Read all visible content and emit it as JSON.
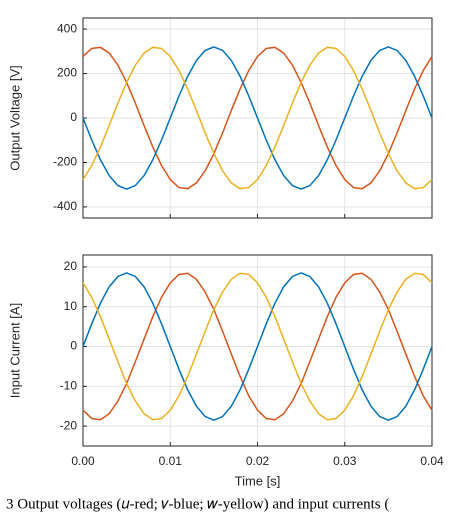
{
  "chart_data": [
    {
      "type": "line",
      "ylabel": "Output Voltage [V]",
      "x": [
        0,
        0.001,
        0.002,
        0.003,
        0.004,
        0.005,
        0.006,
        0.007,
        0.008,
        0.009,
        0.01,
        0.011,
        0.012,
        0.013,
        0.014,
        0.015,
        0.016,
        0.017,
        0.018,
        0.019,
        0.02,
        0.021,
        0.022,
        0.023,
        0.024,
        0.025,
        0.026,
        0.027,
        0.028,
        0.029,
        0.03,
        0.031,
        0.032,
        0.033,
        0.034,
        0.035,
        0.036,
        0.037,
        0.038,
        0.039,
        0.04
      ],
      "xlim": [
        0,
        0.04
      ],
      "ylim": [
        -450,
        450
      ],
      "yticks": [
        -400,
        -200,
        0,
        200,
        400
      ],
      "grid": true,
      "series": [
        {
          "color": "#D95319",
          "values": [
            277,
            313,
            318,
            292,
            238,
            160,
            67,
            -34,
            -130,
            -214,
            -277,
            -313,
            -318,
            -292,
            -238,
            -160,
            -67,
            34,
            130,
            214,
            277,
            313,
            318,
            292,
            238,
            160,
            67,
            -34,
            -130,
            -214,
            -277,
            -313,
            -318,
            -292,
            -238,
            -160,
            -67,
            34,
            130,
            214,
            277
          ]
        },
        {
          "color": "#0072BD",
          "values": [
            0,
            -99,
            -188,
            -259,
            -304,
            -320,
            -304,
            -259,
            -188,
            -99,
            0,
            99,
            188,
            259,
            304,
            320,
            304,
            259,
            188,
            99,
            0,
            -99,
            -188,
            -259,
            -304,
            -320,
            -304,
            -259,
            -188,
            -99,
            0,
            99,
            188,
            259,
            304,
            320,
            304,
            259,
            188,
            99,
            0
          ]
        },
        {
          "color": "#EDB120",
          "values": [
            -277,
            -214,
            -130,
            -34,
            67,
            160,
            238,
            292,
            318,
            313,
            277,
            214,
            130,
            34,
            -67,
            -160,
            -238,
            -292,
            -318,
            -313,
            -277,
            -214,
            -130,
            -34,
            67,
            160,
            238,
            292,
            318,
            313,
            277,
            214,
            130,
            34,
            -67,
            -160,
            -238,
            -292,
            -318,
            -313,
            -277
          ]
        }
      ]
    },
    {
      "type": "line",
      "ylabel": "Input Current [A]",
      "xlabel": "Time [s]",
      "x": [
        0,
        0.001,
        0.002,
        0.003,
        0.004,
        0.005,
        0.006,
        0.007,
        0.008,
        0.009,
        0.01,
        0.011,
        0.012,
        0.013,
        0.014,
        0.015,
        0.016,
        0.017,
        0.018,
        0.019,
        0.02,
        0.021,
        0.022,
        0.023,
        0.024,
        0.025,
        0.026,
        0.027,
        0.028,
        0.029,
        0.03,
        0.031,
        0.032,
        0.033,
        0.034,
        0.035,
        0.036,
        0.037,
        0.038,
        0.039,
        0.04
      ],
      "xlim": [
        0,
        0.04
      ],
      "xticks": [
        {
          "value": 0,
          "label": "0.00"
        },
        0.01,
        0.02,
        0.03,
        0.04
      ],
      "ylim": [
        -25,
        23
      ],
      "yticks": [
        -20,
        -10,
        0,
        10,
        20
      ],
      "grid": true,
      "series": [
        {
          "color": "#D95319",
          "values": [
            -16.0,
            -18.1,
            -18.4,
            -16.9,
            -13.7,
            -9.3,
            -3.8,
            1.9,
            7.5,
            12.4,
            16.0,
            18.1,
            18.4,
            16.9,
            13.7,
            9.3,
            3.8,
            -1.9,
            -7.5,
            -12.4,
            -16.0,
            -18.1,
            -18.4,
            -16.9,
            -13.7,
            -9.3,
            -3.8,
            1.9,
            7.5,
            12.4,
            16.0,
            18.1,
            18.4,
            16.9,
            13.7,
            9.3,
            3.8,
            -1.9,
            -7.5,
            -12.4,
            -16.0
          ]
        },
        {
          "color": "#0072BD",
          "values": [
            0,
            5.7,
            10.9,
            15.0,
            17.6,
            18.5,
            17.6,
            15.0,
            10.9,
            5.7,
            0,
            -5.7,
            -10.9,
            -15.0,
            -17.6,
            -18.5,
            -17.6,
            -15.0,
            -10.9,
            -5.7,
            0,
            5.7,
            10.9,
            15.0,
            17.6,
            18.5,
            17.6,
            15.0,
            10.9,
            5.7,
            0,
            -5.7,
            -10.9,
            -15.0,
            -17.6,
            -18.5,
            -17.6,
            -15.0,
            -10.9,
            -5.7,
            0
          ]
        },
        {
          "color": "#EDB120",
          "values": [
            16.0,
            12.4,
            7.5,
            1.9,
            -3.8,
            -9.3,
            -13.7,
            -16.9,
            -18.4,
            -18.1,
            -16.0,
            -12.4,
            -7.5,
            -1.9,
            3.8,
            9.3,
            13.7,
            16.9,
            18.4,
            18.1,
            16.0,
            12.4,
            7.5,
            1.9,
            -3.8,
            -9.3,
            -13.7,
            -16.9,
            -18.4,
            -18.1,
            -16.0,
            -12.4,
            -7.5,
            -1.9,
            3.8,
            9.3,
            13.7,
            16.9,
            18.4,
            18.1,
            16.0
          ]
        }
      ]
    }
  ],
  "caption": "3 Output voltages (𝑢-red; 𝑣-blue; 𝑤-yellow) and input currents ("
}
